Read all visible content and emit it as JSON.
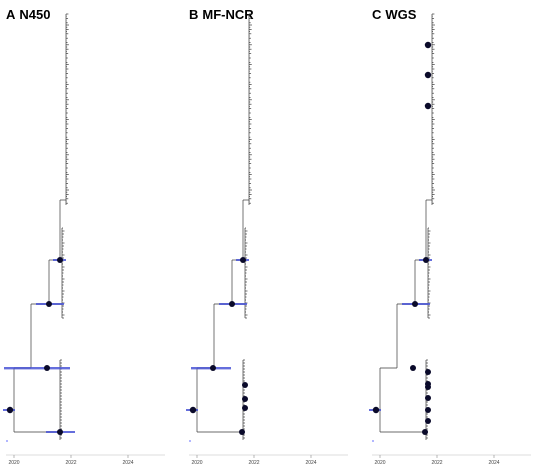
{
  "panels": [
    {
      "letter": "A",
      "title": "N450"
    },
    {
      "letter": "B",
      "title": "MF-NCR"
    },
    {
      "letter": "C",
      "title": "WGS"
    }
  ],
  "axis": {
    "ticks": [
      "2020",
      "2022",
      "2024"
    ]
  },
  "colors": {
    "branch": "#3a3a3a",
    "node": "#0a0a2a",
    "error_bar": "#4a55d6",
    "tip": "#9aa0ff"
  }
}
